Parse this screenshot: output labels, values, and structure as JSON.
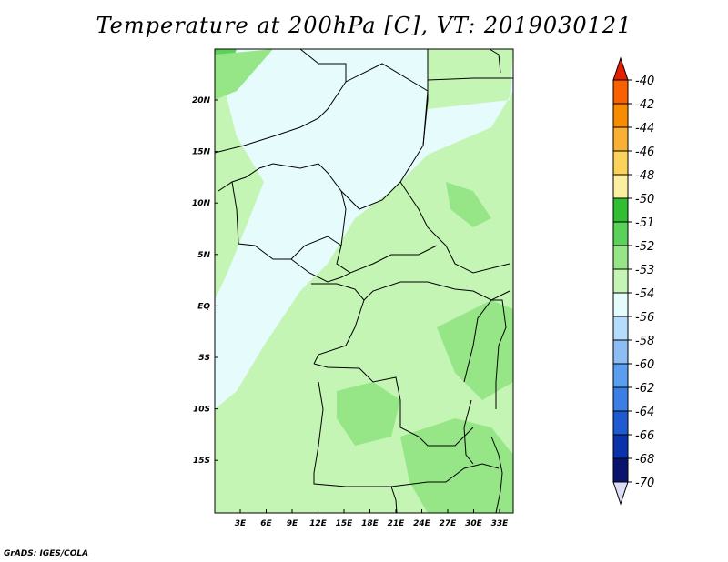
{
  "title": "Temperature at 200hPa [C], VT: 2019030121",
  "credit": "GrADS: IGES/COLA",
  "map": {
    "lon_labels": [
      "3E",
      "6E",
      "9E",
      "12E",
      "15E",
      "18E",
      "21E",
      "24E",
      "27E",
      "30E",
      "33E"
    ],
    "lat_labels": [
      "20N",
      "15N",
      "10N",
      "5N",
      "EQ",
      "5S",
      "10S",
      "15S"
    ]
  },
  "colorbar": {
    "labels": [
      "-40",
      "-42",
      "-44",
      "-46",
      "-48",
      "-50",
      "-51",
      "-52",
      "-53",
      "-54",
      "-56",
      "-58",
      "-60",
      "-62",
      "-64",
      "-66",
      "-68",
      "-70"
    ],
    "colors": [
      "#fa3c00",
      "#f86000",
      "#f88c00",
      "#fab032",
      "#fcd25a",
      "#fcf0a0",
      "#32be32",
      "#5ad25a",
      "#96e688",
      "#c4f5b4",
      "#e6fcfc",
      "#b4dcfc",
      "#8cbef5",
      "#5a9ef0",
      "#3a7ee6",
      "#1e5ad2",
      "#0a32aa",
      "#0a146e"
    ],
    "top_arrow_color": "#e61e00",
    "bottom_arrow_color": "#dcdcf5"
  }
}
